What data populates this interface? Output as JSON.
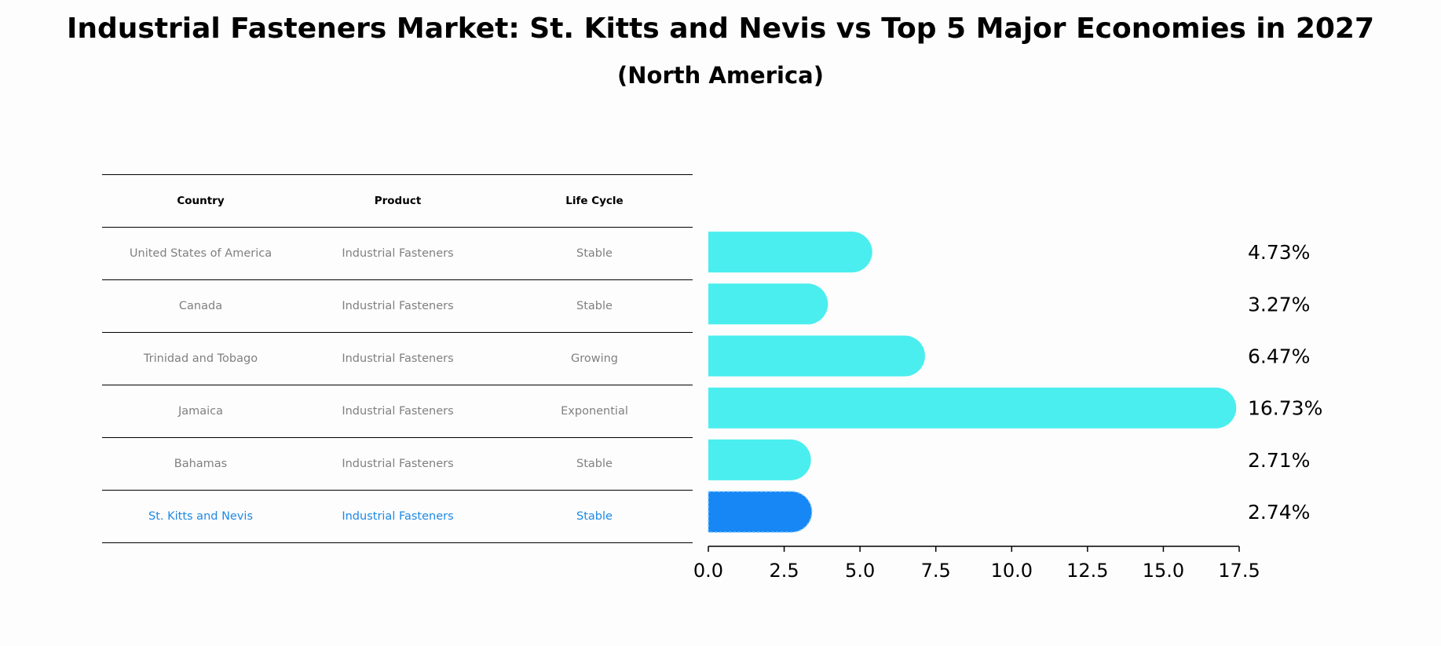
{
  "title": "Industrial Fasteners Market: St. Kitts and Nevis vs Top 5 Major Economies in 2027",
  "subtitle": "(North America)",
  "table": {
    "headers": [
      "Country",
      "Product",
      "Life Cycle"
    ],
    "rows": [
      [
        "United States of America",
        "Industrial Fasteners",
        "Stable"
      ],
      [
        "Canada",
        "Industrial Fasteners",
        "Stable"
      ],
      [
        "Trinidad and Tobago",
        "Industrial Fasteners",
        "Growing"
      ],
      [
        "Jamaica",
        "Industrial Fasteners",
        "Exponential"
      ],
      [
        "Bahamas",
        "Industrial Fasteners",
        "Stable"
      ],
      [
        "St. Kitts and Nevis",
        "Industrial Fasteners",
        "Stable"
      ]
    ]
  },
  "colors": {
    "bar": "#4aeeee",
    "highlight": "#1787f5",
    "highlight_text": "#1e88e5",
    "muted_text": "#808080"
  },
  "chart_data": {
    "type": "bar",
    "orientation": "horizontal",
    "categories": [
      "United States of America",
      "Canada",
      "Trinidad and Tobago",
      "Jamaica",
      "Bahamas",
      "St. Kitts and Nevis"
    ],
    "values": [
      4.73,
      3.27,
      6.47,
      16.73,
      2.71,
      2.74
    ],
    "value_labels": [
      "4.73%",
      "3.27%",
      "6.47%",
      "16.73%",
      "2.71%",
      "2.74%"
    ],
    "highlight_index": 5,
    "xlim": [
      0,
      17.5
    ],
    "xticks": [
      0.0,
      2.5,
      5.0,
      7.5,
      10.0,
      12.5,
      15.0,
      17.5
    ],
    "xtick_labels": [
      "0.0",
      "2.5",
      "5.0",
      "7.5",
      "10.0",
      "12.5",
      "15.0",
      "17.5"
    ],
    "grid": false
  }
}
